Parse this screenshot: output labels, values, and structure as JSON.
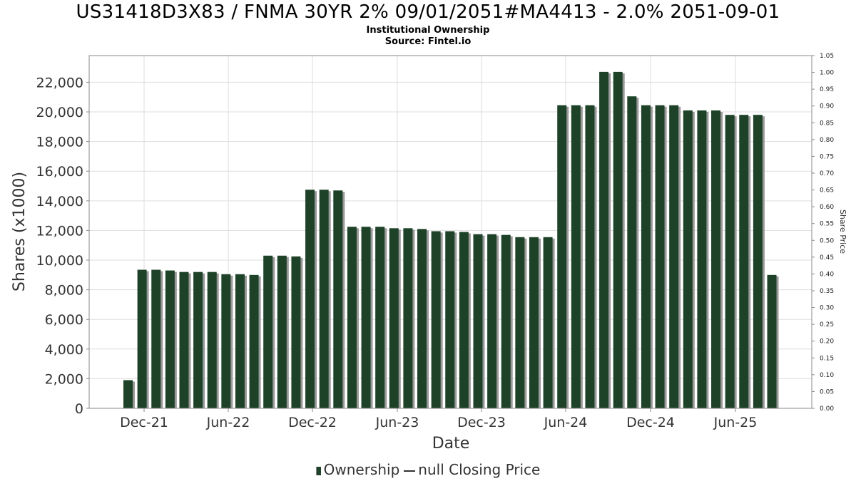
{
  "title": "US31418D3X83 / FNMA 30YR 2% 09/01/2051#MA4413 - 2.0% 2051-09-01",
  "subtitle": "Institutional Ownership",
  "source": "Source: Fintel.io",
  "legend": {
    "ownership": "Ownership",
    "price": "null Closing Price"
  },
  "chart_data": {
    "type": "bar",
    "xlabel": "Date",
    "ylabel": "Shares (x1000)",
    "y2label": "Share Price",
    "ylim": [
      0,
      23800
    ],
    "y2lim": [
      0,
      1.05
    ],
    "yticks": [
      0,
      2000,
      4000,
      6000,
      8000,
      10000,
      12000,
      14000,
      16000,
      18000,
      20000,
      22000
    ],
    "yticklabels": [
      "0",
      "2,000",
      "4,000",
      "6,000",
      "8,000",
      "10,000",
      "12,000",
      "14,000",
      "16,000",
      "18,000",
      "20,000",
      "22,000"
    ],
    "y2ticklabels": [
      "0.00",
      "0.05",
      "0.10",
      "0.15",
      "0.20",
      "0.25",
      "0.30",
      "0.35",
      "0.40",
      "0.45",
      "0.50",
      "0.55",
      "0.60",
      "0.65",
      "0.70",
      "0.75",
      "0.80",
      "0.85",
      "0.90",
      "0.95",
      "1.00",
      "1.05"
    ],
    "xticklabels": [
      "Dec-21",
      "Jun-22",
      "Dec-22",
      "Jun-23",
      "Dec-23",
      "Jun-24",
      "Dec-24",
      "Jun-25"
    ],
    "series": [
      {
        "name": "Ownership",
        "color": "#1e4228",
        "values": [
          1900,
          9350,
          9350,
          9300,
          9200,
          9200,
          9200,
          9050,
          9050,
          9000,
          10300,
          10300,
          10250,
          14750,
          14750,
          14700,
          12250,
          12250,
          12250,
          12150,
          12150,
          12100,
          11950,
          11950,
          11900,
          11750,
          11750,
          11700,
          11550,
          11550,
          11550,
          20450,
          20450,
          20450,
          22700,
          22700,
          21050,
          20450,
          20450,
          20450,
          20100,
          20100,
          20100,
          19800,
          19800,
          19800,
          9000
        ]
      }
    ],
    "grid": true
  }
}
